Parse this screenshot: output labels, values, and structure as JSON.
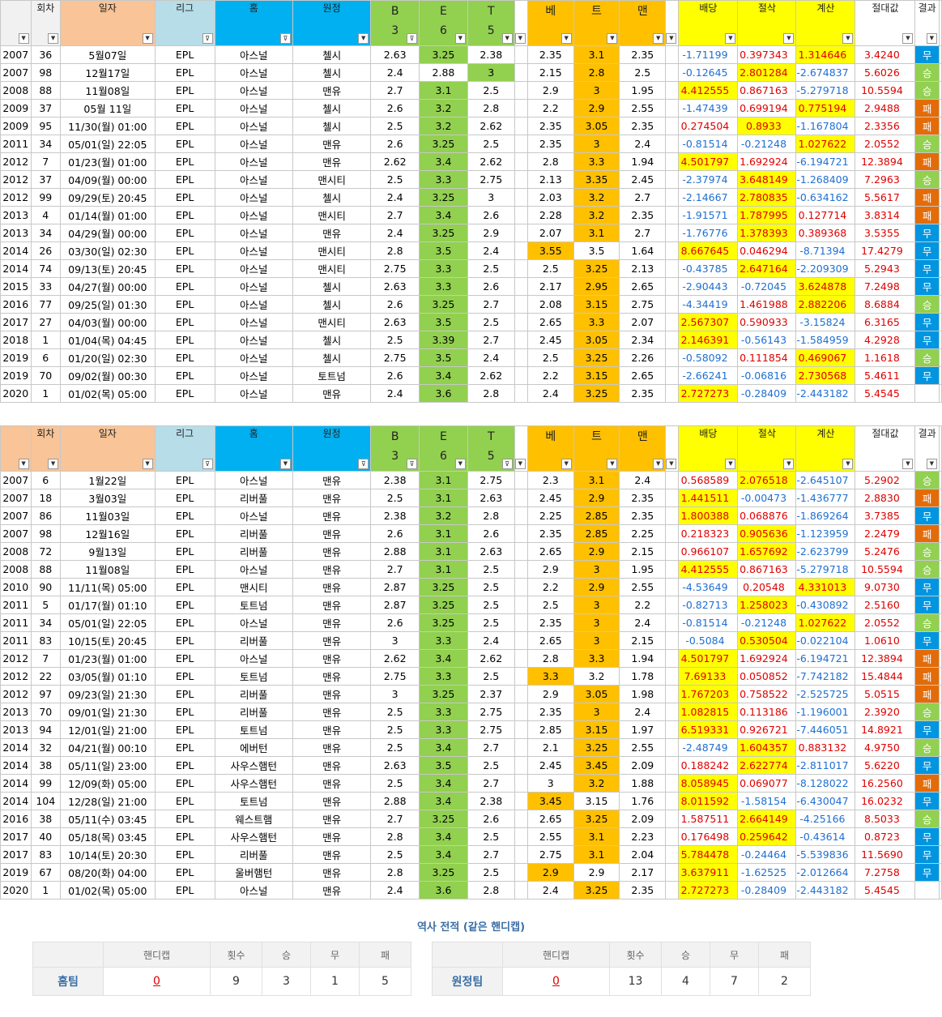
{
  "headers": {
    "round": "회차",
    "date": "일자",
    "league": "리그",
    "home": "홈",
    "away": "원정",
    "b": [
      "B",
      "3"
    ],
    "e": [
      "E",
      "6"
    ],
    "t": [
      "T",
      "5"
    ],
    "be": "베",
    "t2": "트",
    "man": "맨",
    "odds": "배당",
    "cut": "절삭",
    "calc": "계산",
    "abs": "절대값",
    "result": "결과"
  },
  "table1": [
    [
      "2007",
      "36",
      "5월07일",
      "EPL",
      "아스널",
      "첼시",
      "2.63",
      "3.25",
      "2.38",
      "2.35",
      "3.1",
      "2.35",
      "-1.71199",
      "0.397343",
      "1.314646",
      "3.4240",
      "무"
    ],
    [
      "2007",
      "98",
      "12월17일",
      "EPL",
      "아스널",
      "첼시",
      "2.4",
      "2.88",
      "3",
      "2.15",
      "2.8",
      "2.5",
      "-0.12645",
      "2.801284",
      "-2.674837",
      "5.6026",
      "승"
    ],
    [
      "2008",
      "88",
      "11월08일",
      "EPL",
      "아스널",
      "맨유",
      "2.7",
      "3.1",
      "2.5",
      "2.9",
      "3",
      "1.95",
      "4.412555",
      "0.867163",
      "-5.279718",
      "10.5594",
      "승"
    ],
    [
      "2009",
      "37",
      "05월 11일",
      "EPL",
      "아스널",
      "첼시",
      "2.6",
      "3.2",
      "2.8",
      "2.2",
      "2.9",
      "2.55",
      "-1.47439",
      "0.699194",
      "0.775194",
      "2.9488",
      "패"
    ],
    [
      "2009",
      "95",
      "11/30(월) 01:00",
      "EPL",
      "아스널",
      "첼시",
      "2.5",
      "3.2",
      "2.62",
      "2.35",
      "3.05",
      "2.35",
      "0.274504",
      "0.8933",
      "-1.167804",
      "2.3356",
      "패"
    ],
    [
      "2011",
      "34",
      "05/01(일) 22:05",
      "EPL",
      "아스널",
      "맨유",
      "2.6",
      "3.25",
      "2.5",
      "2.35",
      "3",
      "2.4",
      "-0.81514",
      "-0.21248",
      "1.027622",
      "2.0552",
      "승"
    ],
    [
      "2012",
      "7",
      "01/23(월) 01:00",
      "EPL",
      "아스널",
      "맨유",
      "2.62",
      "3.4",
      "2.62",
      "2.8",
      "3.3",
      "1.94",
      "4.501797",
      "1.692924",
      "-6.194721",
      "12.3894",
      "패"
    ],
    [
      "2012",
      "37",
      "04/09(월) 00:00",
      "EPL",
      "아스널",
      "맨시티",
      "2.5",
      "3.3",
      "2.75",
      "2.13",
      "3.35",
      "2.45",
      "-2.37974",
      "3.648149",
      "-1.268409",
      "7.2963",
      "승"
    ],
    [
      "2012",
      "99",
      "09/29(토) 20:45",
      "EPL",
      "아스널",
      "첼시",
      "2.4",
      "3.25",
      "3",
      "2.03",
      "3.2",
      "2.7",
      "-2.14667",
      "2.780835",
      "-0.634162",
      "5.5617",
      "패"
    ],
    [
      "2013",
      "4",
      "01/14(월) 01:00",
      "EPL",
      "아스널",
      "맨시티",
      "2.7",
      "3.4",
      "2.6",
      "2.28",
      "3.2",
      "2.35",
      "-1.91571",
      "1.787995",
      "0.127714",
      "3.8314",
      "패"
    ],
    [
      "2013",
      "34",
      "04/29(월) 00:00",
      "EPL",
      "아스널",
      "맨유",
      "2.4",
      "3.25",
      "2.9",
      "2.07",
      "3.1",
      "2.7",
      "-1.76776",
      "1.378393",
      "0.389368",
      "3.5355",
      "무"
    ],
    [
      "2014",
      "26",
      "03/30(일) 02:30",
      "EPL",
      "아스널",
      "맨시티",
      "2.8",
      "3.5",
      "2.4",
      "3.55",
      "3.5",
      "1.64",
      "8.667645",
      "0.046294",
      "-8.71394",
      "17.4279",
      "무"
    ],
    [
      "2014",
      "74",
      "09/13(토) 20:45",
      "EPL",
      "아스널",
      "맨시티",
      "2.75",
      "3.3",
      "2.5",
      "2.5",
      "3.25",
      "2.13",
      "-0.43785",
      "2.647164",
      "-2.209309",
      "5.2943",
      "무"
    ],
    [
      "2015",
      "33",
      "04/27(월) 00:00",
      "EPL",
      "아스널",
      "첼시",
      "2.63",
      "3.3",
      "2.6",
      "2.17",
      "2.95",
      "2.65",
      "-2.90443",
      "-0.72045",
      "3.624878",
      "7.2498",
      "무"
    ],
    [
      "2016",
      "77",
      "09/25(일) 01:30",
      "EPL",
      "아스널",
      "첼시",
      "2.6",
      "3.25",
      "2.7",
      "2.08",
      "3.15",
      "2.75",
      "-4.34419",
      "1.461988",
      "2.882206",
      "8.6884",
      "승"
    ],
    [
      "2017",
      "27",
      "04/03(월) 00:00",
      "EPL",
      "아스널",
      "맨시티",
      "2.63",
      "3.5",
      "2.5",
      "2.65",
      "3.3",
      "2.07",
      "2.567307",
      "0.590933",
      "-3.15824",
      "6.3165",
      "무"
    ],
    [
      "2018",
      "1",
      "01/04(목) 04:45",
      "EPL",
      "아스널",
      "첼시",
      "2.5",
      "3.39",
      "2.7",
      "2.45",
      "3.05",
      "2.34",
      "2.146391",
      "-0.56143",
      "-1.584959",
      "4.2928",
      "무"
    ],
    [
      "2019",
      "6",
      "01/20(일) 02:30",
      "EPL",
      "아스널",
      "첼시",
      "2.75",
      "3.5",
      "2.4",
      "2.5",
      "3.25",
      "2.26",
      "-0.58092",
      "0.111854",
      "0.469067",
      "1.1618",
      "승"
    ],
    [
      "2019",
      "70",
      "09/02(월) 00:30",
      "EPL",
      "아스널",
      "토트넘",
      "2.6",
      "3.4",
      "2.62",
      "2.2",
      "3.15",
      "2.65",
      "-2.66241",
      "-0.06816",
      "2.730568",
      "5.4611",
      "무"
    ],
    [
      "2020",
      "1",
      "01/02(목) 05:00",
      "EPL",
      "아스널",
      "맨유",
      "2.4",
      "3.6",
      "2.8",
      "2.4",
      "3.25",
      "2.35",
      "2.727273",
      "-0.28409",
      "-2.443182",
      "5.4545",
      ""
    ]
  ],
  "table2": [
    [
      "2007",
      "6",
      "1월22일",
      "EPL",
      "아스널",
      "맨유",
      "2.38",
      "3.1",
      "2.75",
      "2.3",
      "3.1",
      "2.4",
      "0.568589",
      "2.076518",
      "-2.645107",
      "5.2902",
      "승"
    ],
    [
      "2007",
      "18",
      "3월03일",
      "EPL",
      "리버풀",
      "맨유",
      "2.5",
      "3.1",
      "2.63",
      "2.45",
      "2.9",
      "2.35",
      "1.441511",
      "-0.00473",
      "-1.436777",
      "2.8830",
      "패"
    ],
    [
      "2007",
      "86",
      "11월03일",
      "EPL",
      "아스널",
      "맨유",
      "2.38",
      "3.2",
      "2.8",
      "2.25",
      "2.85",
      "2.35",
      "1.800388",
      "0.068876",
      "-1.869264",
      "3.7385",
      "무"
    ],
    [
      "2007",
      "98",
      "12월16일",
      "EPL",
      "리버풀",
      "맨유",
      "2.6",
      "3.1",
      "2.6",
      "2.35",
      "2.85",
      "2.25",
      "0.218323",
      "0.905636",
      "-1.123959",
      "2.2479",
      "패"
    ],
    [
      "2008",
      "72",
      "9월13일",
      "EPL",
      "리버풀",
      "맨유",
      "2.88",
      "3.1",
      "2.63",
      "2.65",
      "2.9",
      "2.15",
      "0.966107",
      "1.657692",
      "-2.623799",
      "5.2476",
      "승"
    ],
    [
      "2008",
      "88",
      "11월08일",
      "EPL",
      "아스널",
      "맨유",
      "2.7",
      "3.1",
      "2.5",
      "2.9",
      "3",
      "1.95",
      "4.412555",
      "0.867163",
      "-5.279718",
      "10.5594",
      "승"
    ],
    [
      "2010",
      "90",
      "11/11(목) 05:00",
      "EPL",
      "맨시티",
      "맨유",
      "2.87",
      "3.25",
      "2.5",
      "2.2",
      "2.9",
      "2.55",
      "-4.53649",
      "0.20548",
      "4.331013",
      "9.0730",
      "무"
    ],
    [
      "2011",
      "5",
      "01/17(월) 01:10",
      "EPL",
      "토트넘",
      "맨유",
      "2.87",
      "3.25",
      "2.5",
      "2.5",
      "3",
      "2.2",
      "-0.82713",
      "1.258023",
      "-0.430892",
      "2.5160",
      "무"
    ],
    [
      "2011",
      "34",
      "05/01(일) 22:05",
      "EPL",
      "아스널",
      "맨유",
      "2.6",
      "3.25",
      "2.5",
      "2.35",
      "3",
      "2.4",
      "-0.81514",
      "-0.21248",
      "1.027622",
      "2.0552",
      "승"
    ],
    [
      "2011",
      "83",
      "10/15(토) 20:45",
      "EPL",
      "리버풀",
      "맨유",
      "3",
      "3.3",
      "2.4",
      "2.65",
      "3",
      "2.15",
      "-0.5084",
      "0.530504",
      "-0.022104",
      "1.0610",
      "무"
    ],
    [
      "2012",
      "7",
      "01/23(월) 01:00",
      "EPL",
      "아스널",
      "맨유",
      "2.62",
      "3.4",
      "2.62",
      "2.8",
      "3.3",
      "1.94",
      "4.501797",
      "1.692924",
      "-6.194721",
      "12.3894",
      "패"
    ],
    [
      "2012",
      "22",
      "03/05(월) 01:10",
      "EPL",
      "토트넘",
      "맨유",
      "2.75",
      "3.3",
      "2.5",
      "3.3",
      "3.2",
      "1.78",
      "7.69133",
      "0.050852",
      "-7.742182",
      "15.4844",
      "패"
    ],
    [
      "2012",
      "97",
      "09/23(일) 21:30",
      "EPL",
      "리버풀",
      "맨유",
      "3",
      "3.25",
      "2.37",
      "2.9",
      "3.05",
      "1.98",
      "1.767203",
      "0.758522",
      "-2.525725",
      "5.0515",
      "패"
    ],
    [
      "2013",
      "70",
      "09/01(일) 21:30",
      "EPL",
      "리버풀",
      "맨유",
      "2.5",
      "3.3",
      "2.75",
      "2.35",
      "3",
      "2.4",
      "1.082815",
      "0.113186",
      "-1.196001",
      "2.3920",
      "승"
    ],
    [
      "2013",
      "94",
      "12/01(일) 21:00",
      "EPL",
      "토트넘",
      "맨유",
      "2.5",
      "3.3",
      "2.75",
      "2.85",
      "3.15",
      "1.97",
      "6.519331",
      "0.926721",
      "-7.446051",
      "14.8921",
      "무"
    ],
    [
      "2014",
      "32",
      "04/21(월) 00:10",
      "EPL",
      "에버턴",
      "맨유",
      "2.5",
      "3.4",
      "2.7",
      "2.1",
      "3.25",
      "2.55",
      "-2.48749",
      "1.604357",
      "0.883132",
      "4.9750",
      "승"
    ],
    [
      "2014",
      "38",
      "05/11(일) 23:00",
      "EPL",
      "사우스햄턴",
      "맨유",
      "2.63",
      "3.5",
      "2.5",
      "2.45",
      "3.45",
      "2.09",
      "0.188242",
      "2.622774",
      "-2.811017",
      "5.6220",
      "무"
    ],
    [
      "2014",
      "99",
      "12/09(화) 05:00",
      "EPL",
      "사우스햄턴",
      "맨유",
      "2.5",
      "3.4",
      "2.7",
      "3",
      "3.2",
      "1.88",
      "8.058945",
      "0.069077",
      "-8.128022",
      "16.2560",
      "패"
    ],
    [
      "2014",
      "104",
      "12/28(일) 21:00",
      "EPL",
      "토트넘",
      "맨유",
      "2.88",
      "3.4",
      "2.38",
      "3.45",
      "3.15",
      "1.76",
      "8.011592",
      "-1.58154",
      "-6.430047",
      "16.0232",
      "무"
    ],
    [
      "2016",
      "38",
      "05/11(수) 03:45",
      "EPL",
      "웨스트햄",
      "맨유",
      "2.7",
      "3.25",
      "2.6",
      "2.65",
      "3.25",
      "2.09",
      "1.587511",
      "2.664149",
      "-4.25166",
      "8.5033",
      "승"
    ],
    [
      "2017",
      "40",
      "05/18(목) 03:45",
      "EPL",
      "사우스햄턴",
      "맨유",
      "2.8",
      "3.4",
      "2.5",
      "2.55",
      "3.1",
      "2.23",
      "0.176498",
      "0.259642",
      "-0.43614",
      "0.8723",
      "무"
    ],
    [
      "2017",
      "83",
      "10/14(토) 20:30",
      "EPL",
      "리버풀",
      "맨유",
      "2.5",
      "3.4",
      "2.7",
      "2.75",
      "3.1",
      "2.04",
      "5.784478",
      "-0.24464",
      "-5.539836",
      "11.5690",
      "무"
    ],
    [
      "2019",
      "67",
      "08/20(화) 04:00",
      "EPL",
      "울버햄턴",
      "맨유",
      "2.8",
      "3.25",
      "2.5",
      "2.9",
      "2.9",
      "2.17",
      "3.637911",
      "-1.62525",
      "-2.012664",
      "7.2758",
      "무"
    ],
    [
      "2020",
      "1",
      "01/02(목) 05:00",
      "EPL",
      "아스널",
      "맨유",
      "2.4",
      "3.6",
      "2.8",
      "2.4",
      "3.25",
      "2.35",
      "2.727273",
      "-0.28409",
      "-2.443182",
      "5.4545",
      ""
    ]
  ],
  "summary": {
    "title": "역사 전적 (같은 핸디캡)",
    "headers": [
      "핸디캡",
      "횟수",
      "승",
      "무",
      "패"
    ],
    "home": {
      "team": "홈팀",
      "handicap": "0",
      "count": "9",
      "win": "3",
      "draw": "1",
      "loss": "5"
    },
    "away": {
      "team": "원정팀",
      "handicap": "0",
      "count": "13",
      "win": "4",
      "draw": "7",
      "loss": "2"
    }
  },
  "colors": {
    "green": "#92d050",
    "orange": "#ffc000",
    "yellow": "#ffff00",
    "result_draw": "#0095e0",
    "result_loss": "#e36c09",
    "result_win": "#92d050",
    "header_peach": "#f9c497",
    "header_lightblue": "#b7dde8",
    "header_cyan": "#00b0f0",
    "negative_text": "#1f6fd1",
    "positive_text": "#e00000"
  }
}
